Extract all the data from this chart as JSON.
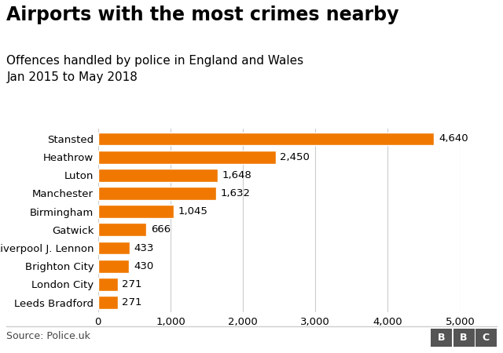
{
  "title": "Airports with the most crimes nearby",
  "subtitle_line1": "Offences handled by police in England and Wales",
  "subtitle_line2": "Jan 2015 to May 2018",
  "source": "Source: Police.uk",
  "airports": [
    "Stansted",
    "Heathrow",
    "Luton",
    "Manchester",
    "Birmingham",
    "Gatwick",
    "Liverpool J. Lennon",
    "Brighton City",
    "London City",
    "Leeds Bradford"
  ],
  "values": [
    4640,
    2450,
    1648,
    1632,
    1045,
    666,
    433,
    430,
    271,
    271
  ],
  "labels": [
    "4,640",
    "2,450",
    "1,648",
    "1,632",
    "1,045",
    "666",
    "433",
    "430",
    "271",
    "271"
  ],
  "bar_color": "#f07800",
  "background_color": "#ffffff",
  "xlim": [
    0,
    5000
  ],
  "xticks": [
    0,
    1000,
    2000,
    3000,
    4000,
    5000
  ],
  "xtick_labels": [
    "0",
    "1,000",
    "2,000",
    "3,000",
    "4,000",
    "5,000"
  ],
  "title_fontsize": 17,
  "subtitle_fontsize": 11,
  "label_fontsize": 9.5,
  "tick_fontsize": 9.5,
  "source_fontsize": 9,
  "bbc_text": "BBC",
  "grid_color": "#cccccc",
  "footer_line_color": "#cccccc"
}
